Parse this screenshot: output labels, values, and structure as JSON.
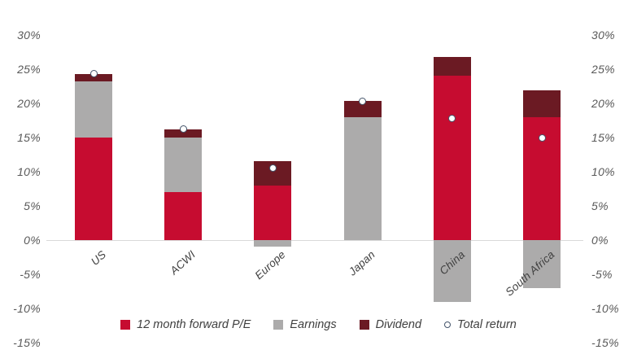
{
  "chart_data": {
    "type": "bar",
    "stacked": true,
    "title": "",
    "xlabel": "",
    "ylabel": "",
    "ylim": [
      -15,
      30
    ],
    "dual_axis": true,
    "grid": "zero-line-only",
    "legend_position": "bottom-center",
    "categories": [
      "US",
      "ACWI",
      "Europe",
      "Japan",
      "China",
      "South Africa"
    ],
    "series": [
      {
        "name": "12 month forward P/E",
        "color": "#C60C30",
        "values": [
          15,
          7,
          8,
          0,
          24,
          18
        ]
      },
      {
        "name": "Earnings",
        "color": "#ACABAB",
        "values": [
          8.2,
          8,
          -1,
          18,
          -9,
          -7
        ]
      },
      {
        "name": "Dividend",
        "color": "#6B1A23",
        "values": [
          1.1,
          1.2,
          3.5,
          2.3,
          2.8,
          3.9
        ]
      }
    ],
    "marker_series": {
      "name": "Total return",
      "values": [
        24.3,
        16.3,
        10.5,
        20.3,
        17.8,
        14.9
      ],
      "fill": "#FFFFFF",
      "border": "#44546A"
    },
    "y_ticks": [
      "30%",
      "25%",
      "20%",
      "15%",
      "10%",
      "5%",
      "0%",
      "-5%",
      "-10%",
      "-15%"
    ],
    "y_tick_values": [
      30,
      25,
      20,
      15,
      10,
      5,
      0,
      -5,
      -10,
      -15
    ],
    "colors": {
      "zero_line": "#D9D9D9",
      "axis_text": "#595959",
      "category_text": "#404040"
    }
  }
}
